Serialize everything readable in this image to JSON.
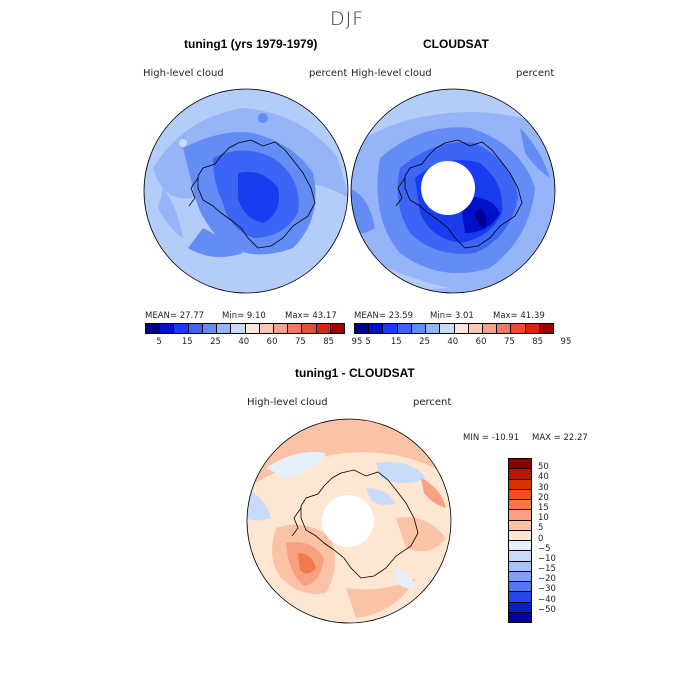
{
  "figure": {
    "season": "DJF"
  },
  "panels": {
    "model": {
      "title": "tuning1 (yrs 1979-1979)",
      "field": "High-level cloud",
      "units": "percent",
      "stats": {
        "mean": "MEAN=   27.77",
        "min": "Min=     9.10",
        "max": "Max=   43.17"
      }
    },
    "obs": {
      "title": "CLOUDSAT",
      "field": "High-level cloud",
      "units": "percent",
      "stats": {
        "mean": "MEAN=   23.59",
        "min": "Min=    3.01",
        "max": "Max=   41.39"
      }
    },
    "diff": {
      "title": "tuning1 - CLOUDSAT",
      "field": "High-level cloud",
      "units": "percent",
      "stats": {
        "min": "MIN =  -10.91",
        "max": "MAX =   22.27"
      }
    }
  },
  "colorbars": {
    "absolute": {
      "colors": [
        "#00008c",
        "#0010c8",
        "#1a3cf0",
        "#3c64f5",
        "#648cf5",
        "#96b4f8",
        "#c8dcfa",
        "#fae6dc",
        "#fac8b4",
        "#f5a08c",
        "#f07864",
        "#e65032",
        "#d22814",
        "#a00000"
      ],
      "labels": [
        "5",
        "15",
        "25",
        "40",
        "60",
        "75",
        "85",
        "95"
      ]
    },
    "difference": {
      "colors": [
        "#8b0000",
        "#b41a00",
        "#d83200",
        "#f05014",
        "#f5784b",
        "#f8a082",
        "#fac3a5",
        "#fde6d2",
        "#e6f0fa",
        "#c8dcfa",
        "#a5c3f8",
        "#7da0f5",
        "#5078f0",
        "#2846e6",
        "#0a1ec8",
        "#000096"
      ],
      "labels": [
        "50",
        "40",
        "30",
        "20",
        "15",
        "10",
        "5",
        "0",
        "−5",
        "−10",
        "−15",
        "−20",
        "−30",
        "−40",
        "−50"
      ]
    }
  }
}
